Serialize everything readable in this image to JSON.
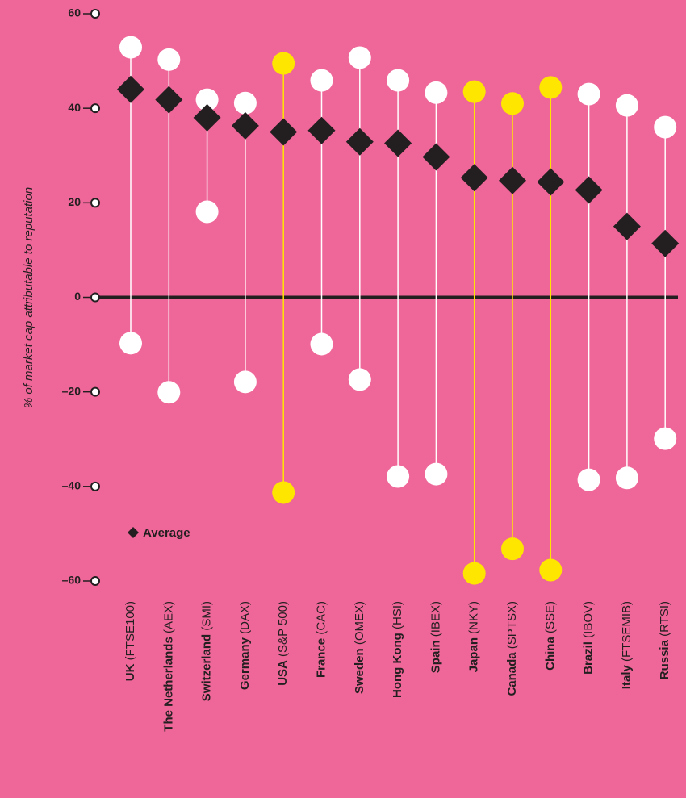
{
  "chart_data": {
    "type": "range",
    "y_label": "% of market cap attributable to reputation",
    "categories": [
      "UK",
      "The Netherlands",
      "Switzerland",
      "Germany",
      "USA",
      "France",
      "Sweden",
      "Hong Kong",
      "Spain",
      "Japan",
      "Canada",
      "China",
      "Brazil",
      "Italy",
      "Russia"
    ],
    "indices": [
      "(FTSE100)",
      "(AEX)",
      "(SMI)",
      "(DAX)",
      "(S&P 500)",
      "(CAC)",
      "(OMEX)",
      "(HSI)",
      "(IBEX)",
      "(NKY)",
      "(SPTSX)",
      "(SSE)",
      "(IBOV)",
      "(FTSEMIB)",
      "(RTSI)"
    ],
    "series": [
      {
        "name": "Average",
        "color": "#231f20",
        "values": [
          44,
          41.8,
          38,
          36.3,
          35,
          35.3,
          32.9,
          32.6,
          29.7,
          25.3,
          24.7,
          24.4,
          22.7,
          15,
          11.4
        ]
      }
    ],
    "high": [
      52.9,
      50.3,
      41.8,
      41.1,
      49.5,
      45.9,
      50.7,
      45.9,
      43.3,
      43.5,
      41,
      44.4,
      43,
      40.6,
      36
    ],
    "low": [
      -9.7,
      -20.1,
      18.1,
      -17.9,
      -41.3,
      -9.9,
      -17.4,
      -37.9,
      -37.4,
      -58.4,
      -53.2,
      -57.7,
      -38.6,
      -38.2,
      -29.9
    ],
    "range_colors": [
      "#ffffff",
      "#ffffff",
      "#ffffff",
      "#ffffff",
      "#ffe600",
      "#ffffff",
      "#ffffff",
      "#ffffff",
      "#ffffff",
      "#ffe600",
      "#ffe600",
      "#ffe600",
      "#ffffff",
      "#ffffff",
      "#ffffff"
    ],
    "ylim": [
      -60,
      60
    ],
    "yticks": [
      {
        "value": -60,
        "label": "–60"
      },
      {
        "value": -40,
        "label": "–40"
      },
      {
        "value": -20,
        "label": "–20"
      },
      0,
      20,
      40,
      60
    ]
  }
}
